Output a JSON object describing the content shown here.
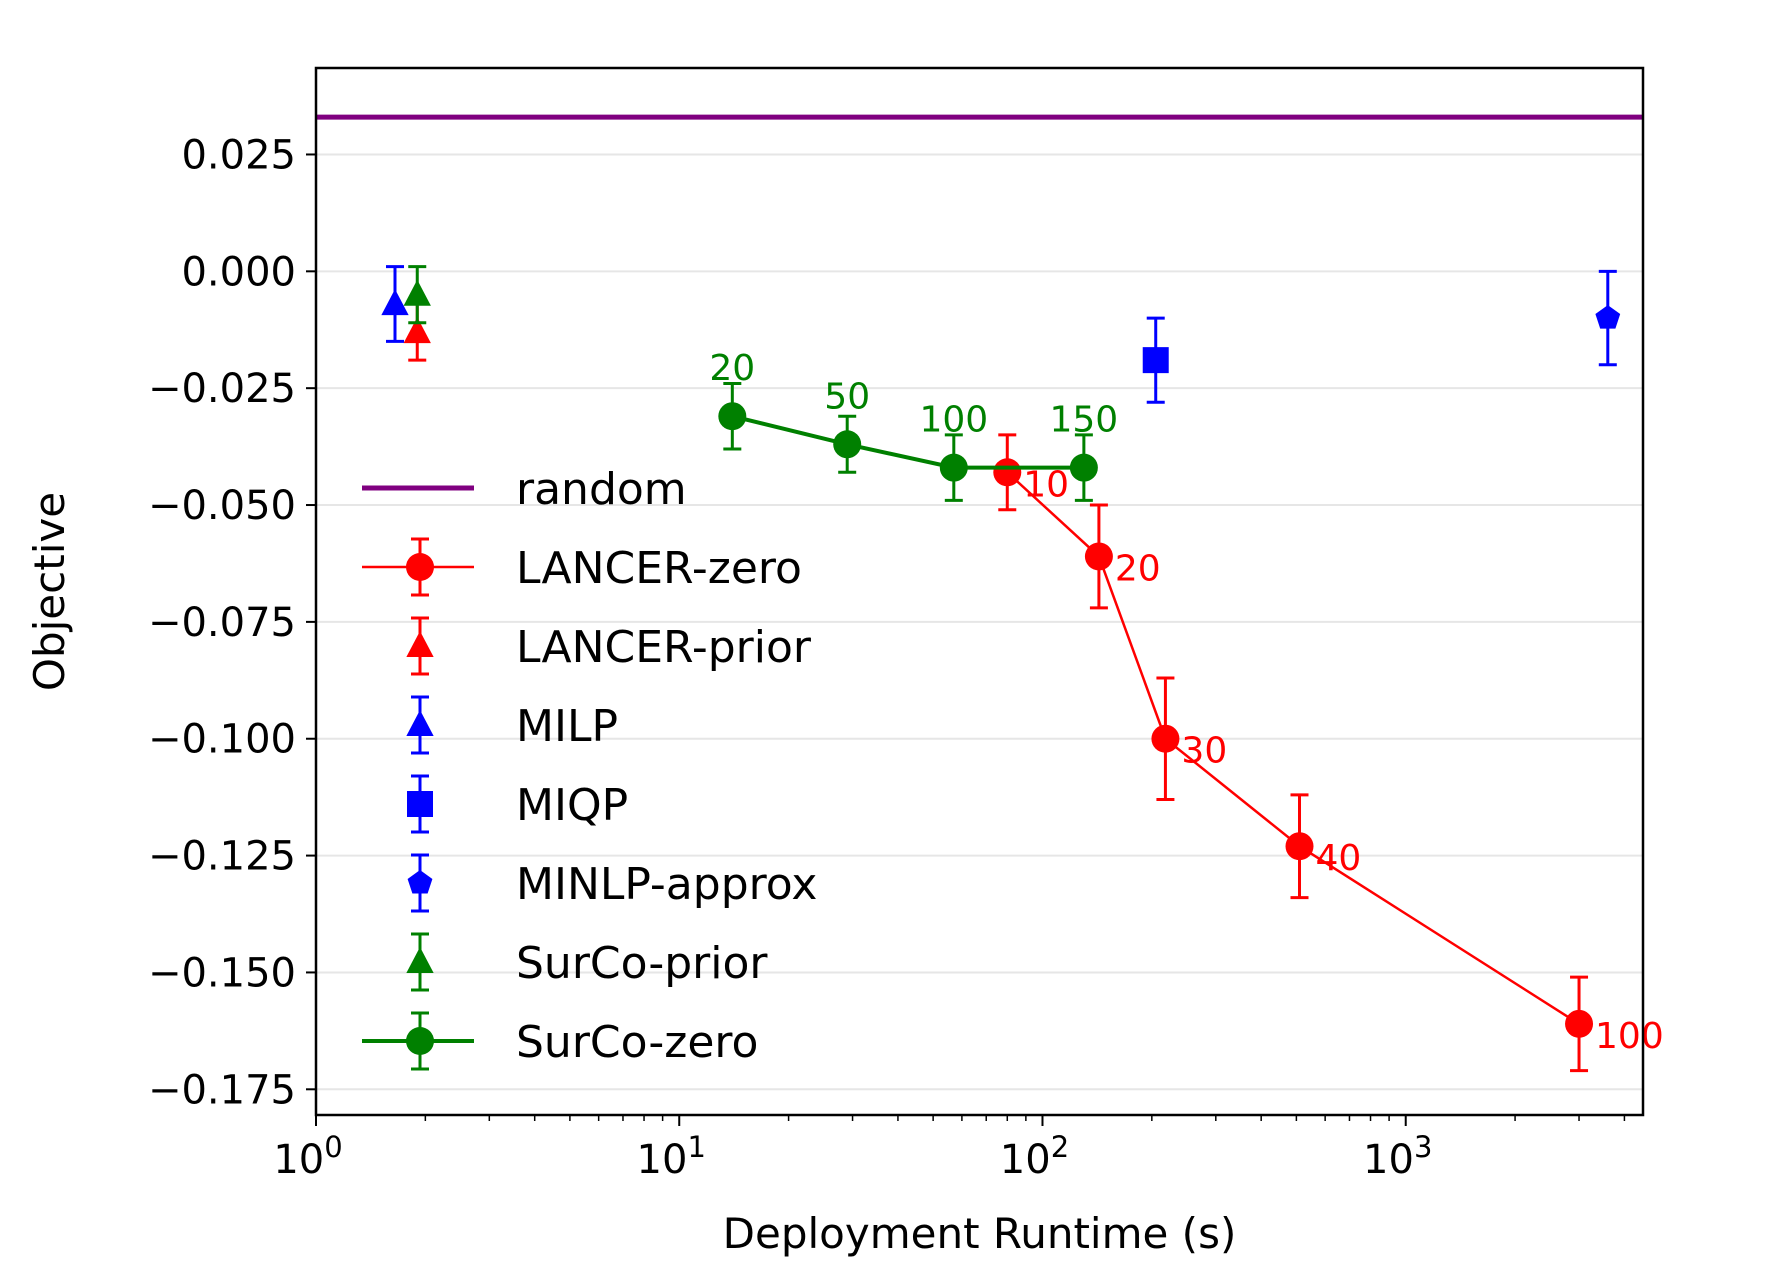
{
  "chart_data": {
    "type": "scatter",
    "xlabel": "Deployment Runtime (s)",
    "ylabel": "Objective",
    "xscale": "log",
    "xlim": [
      1,
      4500
    ],
    "ylim": [
      -0.1805,
      0.0435
    ],
    "grid": "horizontal",
    "legend_position": "center-left",
    "x_ticks": [
      {
        "value": 1,
        "base": "10",
        "exp": "0"
      },
      {
        "value": 10,
        "base": "10",
        "exp": "1"
      },
      {
        "value": 100,
        "base": "10",
        "exp": "2"
      },
      {
        "value": 1000,
        "base": "10",
        "exp": "3"
      }
    ],
    "y_ticks": [
      {
        "value": 0.025,
        "label": "0.025"
      },
      {
        "value": 0.0,
        "label": "0.000"
      },
      {
        "value": -0.025,
        "label": "−0.025"
      },
      {
        "value": -0.05,
        "label": "−0.050"
      },
      {
        "value": -0.075,
        "label": "−0.075"
      },
      {
        "value": -0.1,
        "label": "−0.100"
      },
      {
        "value": -0.125,
        "label": "−0.125"
      },
      {
        "value": -0.15,
        "label": "−0.150"
      },
      {
        "value": -0.175,
        "label": "−0.175"
      }
    ],
    "hlines": [
      {
        "name": "random",
        "y": 0.033,
        "color": "#800080"
      }
    ],
    "series": [
      {
        "name": "LANCER-zero",
        "color": "#ff0000",
        "marker": "circle",
        "line": true,
        "points": [
          {
            "x": 80,
            "y": -0.043,
            "err": 0.008,
            "label": "10"
          },
          {
            "x": 143,
            "y": -0.061,
            "err": 0.011,
            "label": "20"
          },
          {
            "x": 218,
            "y": -0.1,
            "err": 0.013,
            "label": "30"
          },
          {
            "x": 510,
            "y": -0.123,
            "err": 0.011,
            "label": "40"
          },
          {
            "x": 3000,
            "y": -0.161,
            "err": 0.01,
            "label": "100"
          }
        ]
      },
      {
        "name": "LANCER-prior",
        "color": "#ff0000",
        "marker": "triangle",
        "line": false,
        "points": [
          {
            "x": 1.9,
            "y": -0.013,
            "err": 0.006
          }
        ]
      },
      {
        "name": "MILP",
        "color": "#0000ff",
        "marker": "triangle",
        "line": false,
        "points": [
          {
            "x": 1.65,
            "y": -0.007,
            "err": 0.008
          }
        ]
      },
      {
        "name": "MIQP",
        "color": "#0000ff",
        "marker": "square",
        "line": false,
        "points": [
          {
            "x": 205,
            "y": -0.019,
            "err": 0.009
          }
        ]
      },
      {
        "name": "MINLP-approx",
        "color": "#0000ff",
        "marker": "pentagon",
        "line": false,
        "points": [
          {
            "x": 3600,
            "y": -0.01,
            "err": 0.01
          }
        ]
      },
      {
        "name": "SurCo-prior",
        "color": "#008000",
        "marker": "triangle",
        "line": false,
        "points": [
          {
            "x": 1.9,
            "y": -0.005,
            "err": 0.006
          }
        ]
      },
      {
        "name": "SurCo-zero",
        "color": "#008000",
        "marker": "circle",
        "line": true,
        "points": [
          {
            "x": 14,
            "y": -0.031,
            "err": 0.007,
            "label": "20"
          },
          {
            "x": 29,
            "y": -0.037,
            "err": 0.006,
            "label": "50"
          },
          {
            "x": 57,
            "y": -0.042,
            "err": 0.007,
            "label": "100"
          },
          {
            "x": 130,
            "y": -0.042,
            "err": 0.007,
            "label": "150"
          }
        ]
      }
    ],
    "legend": [
      {
        "name": "random",
        "color": "#800080",
        "type": "line"
      },
      {
        "name": "LANCER-zero",
        "color": "#ff0000",
        "type": "errline",
        "marker": "circle"
      },
      {
        "name": "LANCER-prior",
        "color": "#ff0000",
        "type": "err",
        "marker": "triangle"
      },
      {
        "name": "MILP",
        "color": "#0000ff",
        "type": "err",
        "marker": "triangle"
      },
      {
        "name": "MIQP",
        "color": "#0000ff",
        "type": "err",
        "marker": "square"
      },
      {
        "name": "MINLP-approx",
        "color": "#0000ff",
        "type": "err",
        "marker": "pentagon"
      },
      {
        "name": "SurCo-prior",
        "color": "#008000",
        "type": "err",
        "marker": "triangle"
      },
      {
        "name": "SurCo-zero",
        "color": "#008000",
        "type": "errline",
        "marker": "circle"
      }
    ]
  }
}
